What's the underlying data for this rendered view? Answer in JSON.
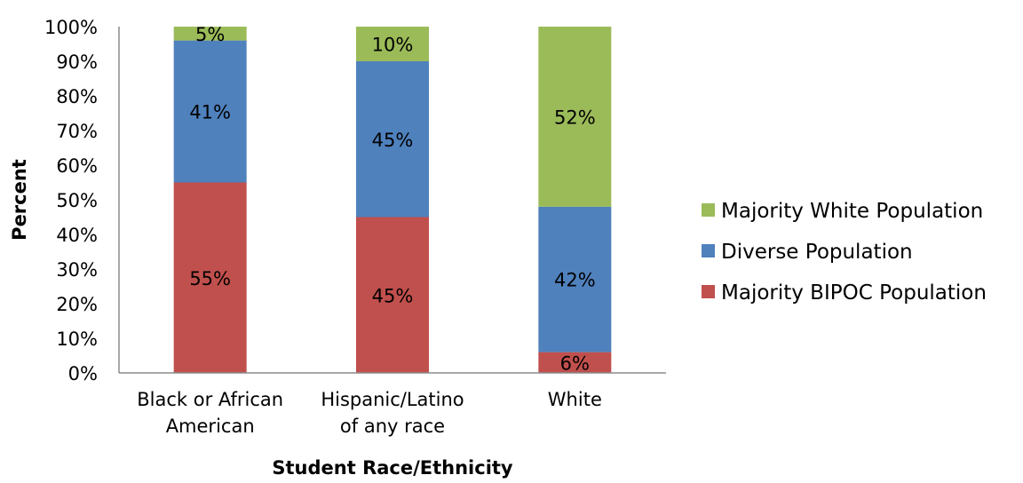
{
  "chart_data": {
    "type": "bar",
    "stacked": true,
    "title": "",
    "xlabel": "Student Race/Ethnicity",
    "ylabel": "Percent",
    "ylim": [
      0,
      100
    ],
    "y_tick_format": "percent",
    "y_ticks": [
      "0%",
      "10%",
      "20%",
      "30%",
      "40%",
      "50%",
      "60%",
      "70%",
      "80%",
      "90%",
      "100%"
    ],
    "grid": false,
    "legend_position": "right",
    "categories": [
      [
        "Black or African",
        "American"
      ],
      [
        "Hispanic/Latino",
        "of any race"
      ],
      [
        "White"
      ]
    ],
    "series": [
      {
        "name": "Majority BIPOC Population",
        "color": "#C0504D",
        "values": [
          55,
          45,
          6
        ],
        "labels": [
          "55%",
          "45%",
          "6%"
        ]
      },
      {
        "name": "Diverse Population",
        "color": "#4F81BD",
        "values": [
          41,
          45,
          42
        ],
        "labels": [
          "41%",
          "45%",
          "42%"
        ]
      },
      {
        "name": "Majority White Population",
        "color": "#9BBB59",
        "values": [
          5,
          10,
          52
        ],
        "labels": [
          "5%",
          "10%",
          "52%"
        ]
      }
    ],
    "legend_order": [
      "Majority White Population",
      "Diverse Population",
      "Majority BIPOC Population"
    ]
  }
}
